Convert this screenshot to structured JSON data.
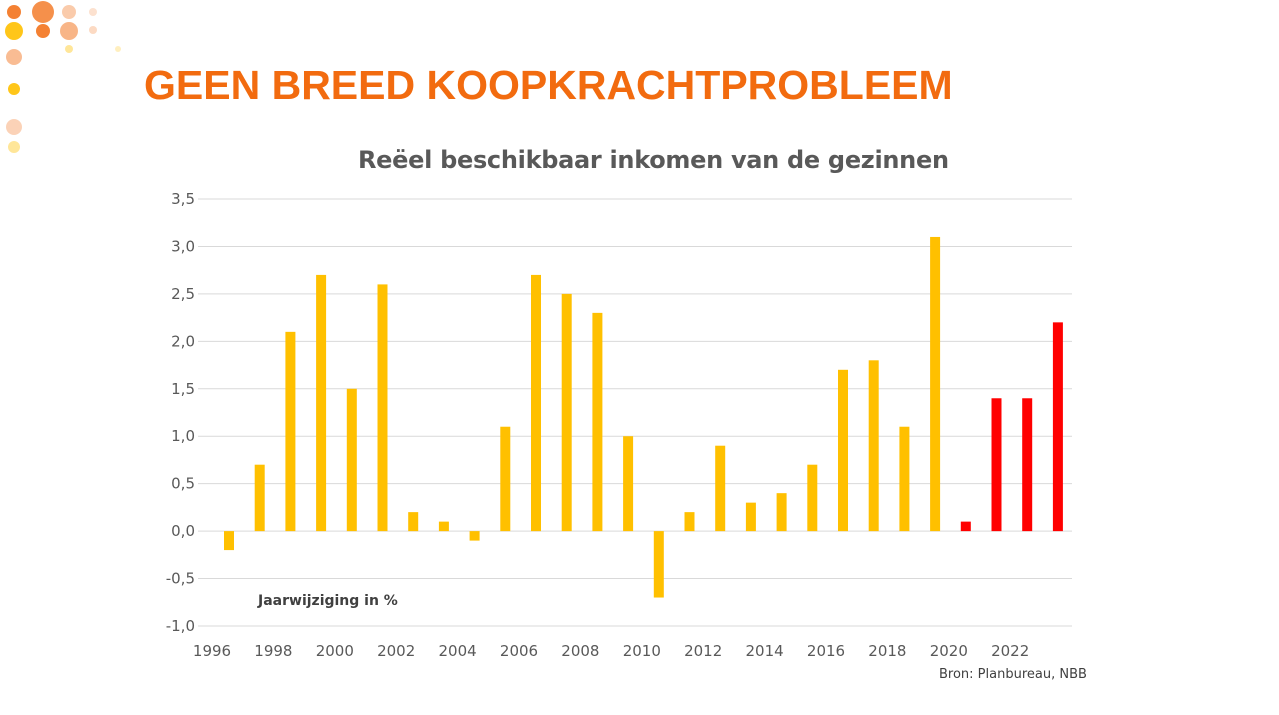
{
  "slide": {
    "title": "GEEN BREED KOOPKRACHTPROBLEEM",
    "title_color": "#f26b0f"
  },
  "chart_data": {
    "type": "bar",
    "title": "Reëel beschikbaar inkomen van de gezinnen",
    "annotation": "Jaarwijziging in %",
    "source": "Bron: Planbureau, NBB",
    "categories": [
      1996,
      1997,
      1998,
      1999,
      2000,
      2001,
      2002,
      2003,
      2004,
      2005,
      2006,
      2007,
      2008,
      2009,
      2010,
      2011,
      2012,
      2013,
      2014,
      2015,
      2016,
      2017,
      2018,
      2019,
      2020,
      2021,
      2022,
      2023
    ],
    "values": [
      -0.2,
      0.7,
      2.1,
      2.7,
      1.5,
      2.6,
      0.2,
      0.1,
      -0.1,
      1.1,
      2.7,
      2.5,
      2.3,
      1.0,
      -0.7,
      0.2,
      0.9,
      0.3,
      0.4,
      0.7,
      1.7,
      1.8,
      1.1,
      3.1,
      0.1,
      1.4,
      1.4,
      2.2
    ],
    "bar_colors": {
      "historical": "#ffc000",
      "forecast": "#ff0000",
      "forecast_from": 2020
    },
    "ylim": [
      -1.0,
      3.5
    ],
    "yticks": [
      "-1,0",
      "-0,5",
      "0,0",
      "0,5",
      "1,0",
      "1,5",
      "2,0",
      "2,5",
      "3,0",
      "3,5"
    ],
    "ytick_values": [
      -1.0,
      -0.5,
      0.0,
      0.5,
      1.0,
      1.5,
      2.0,
      2.5,
      3.0,
      3.5
    ],
    "xticks": [
      "1996",
      "1998",
      "2000",
      "2002",
      "2004",
      "2006",
      "2008",
      "2010",
      "2012",
      "2014",
      "2016",
      "2018",
      "2020",
      "2022"
    ],
    "grid": true,
    "legend": "none"
  }
}
